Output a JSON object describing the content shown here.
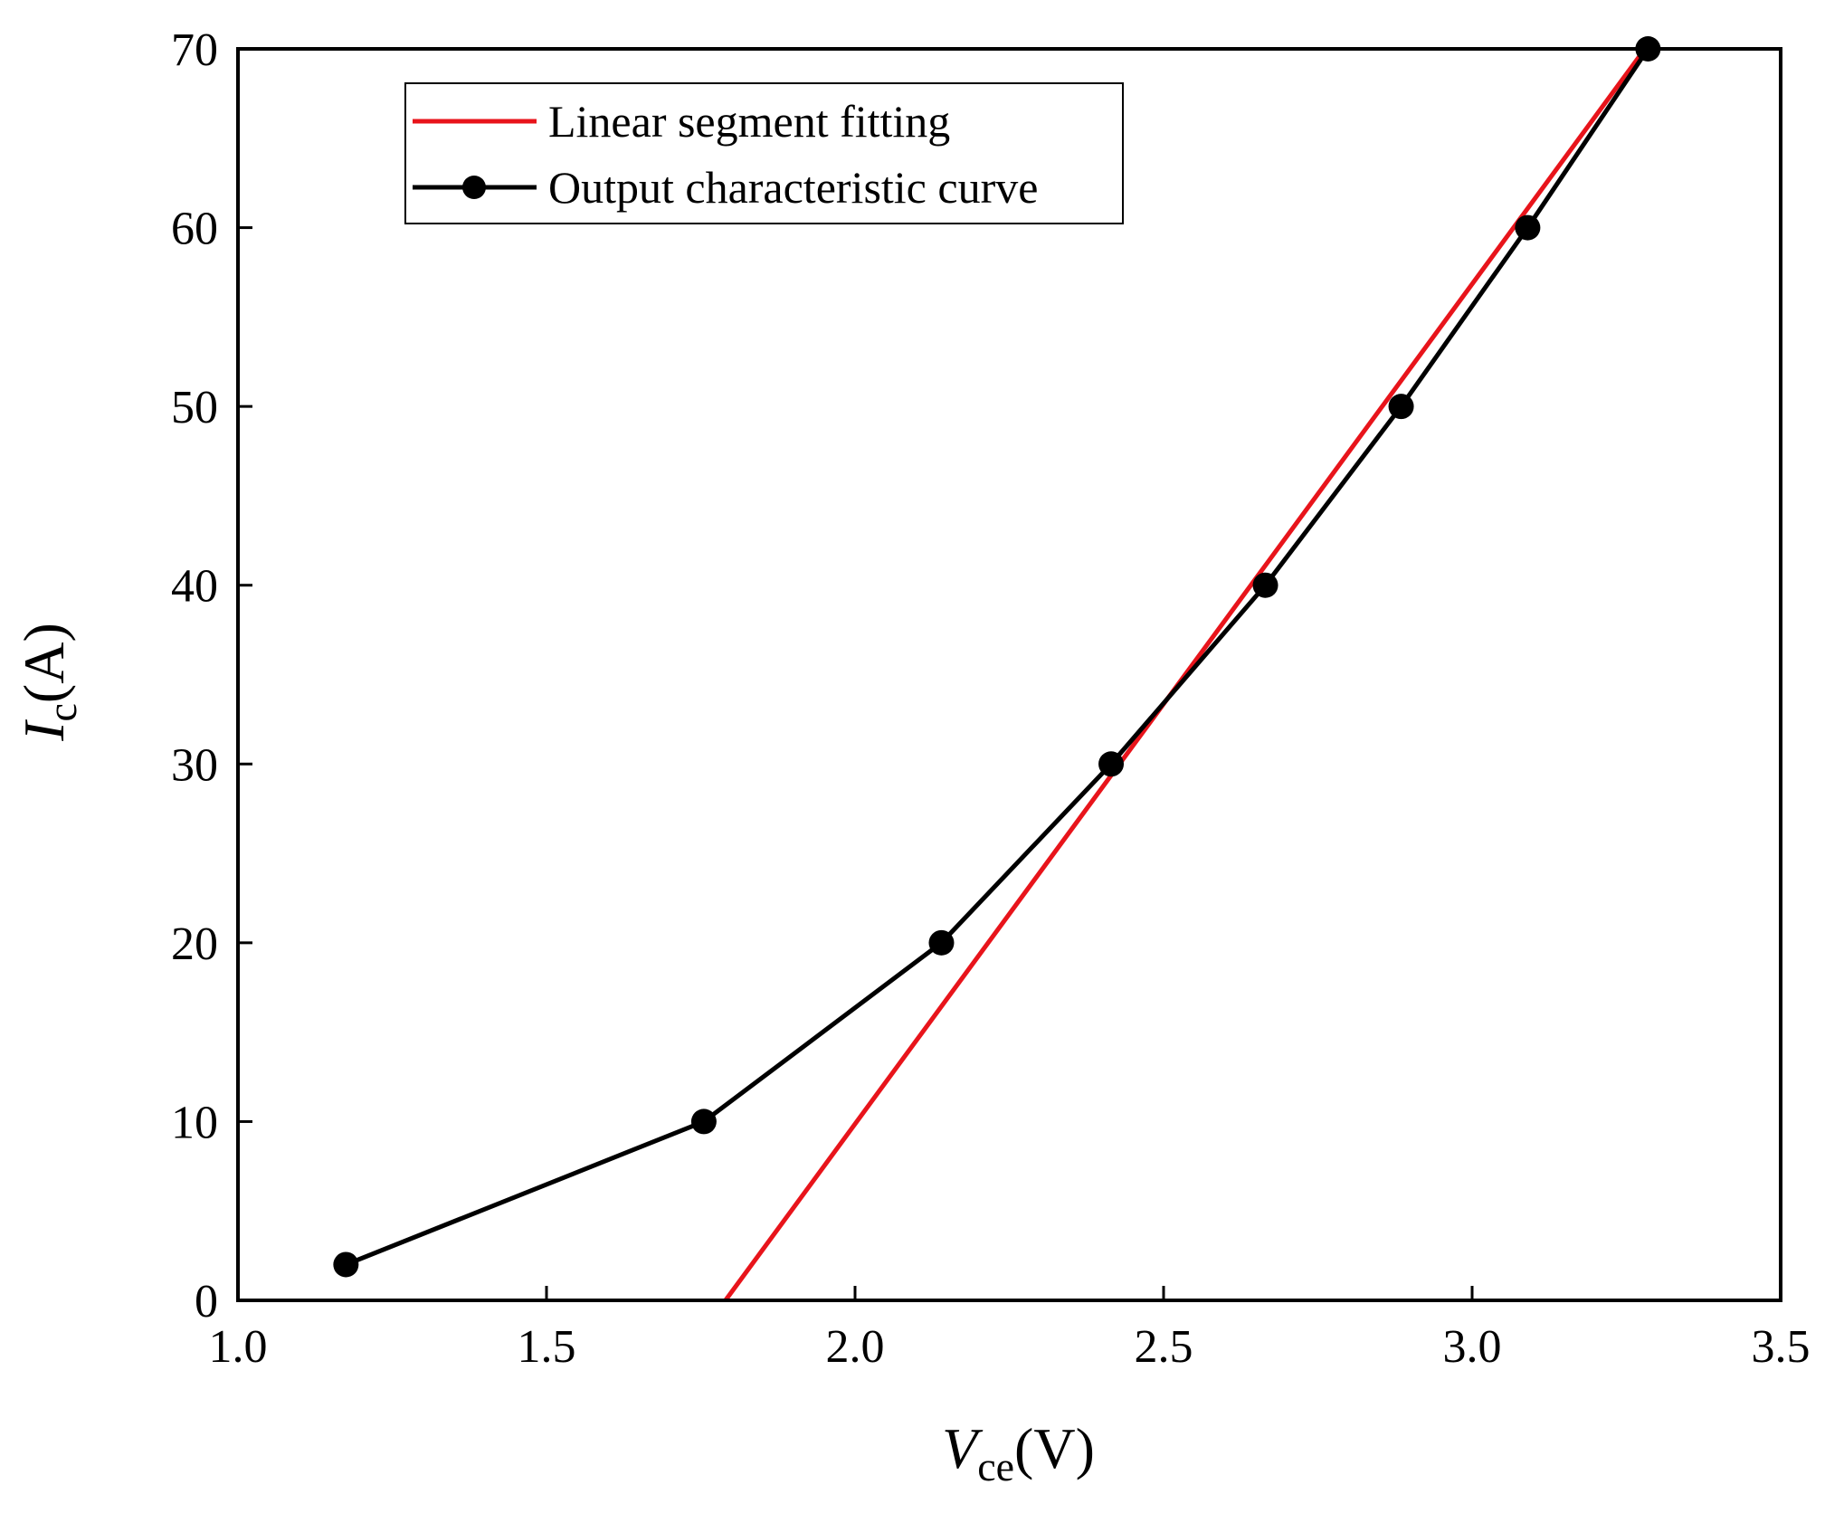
{
  "chart_data": {
    "type": "line",
    "xlabel": {
      "symbol": "V",
      "sub": "ce",
      "unit": "(V)"
    },
    "ylabel": {
      "symbol": "I",
      "sub": "c",
      "unit": "(A)"
    },
    "xlim": [
      1.0,
      3.5
    ],
    "ylim": [
      0,
      70
    ],
    "xticks": [
      1.0,
      1.5,
      2.0,
      2.5,
      3.0,
      3.5
    ],
    "xtick_labels": [
      "1.0",
      "1.5",
      "2.0",
      "2.5",
      "3.0",
      "3.5"
    ],
    "yticks": [
      0,
      10,
      20,
      30,
      40,
      50,
      60,
      70
    ],
    "ytick_labels": [
      "0",
      "10",
      "20",
      "30",
      "40",
      "50",
      "60",
      "70"
    ],
    "grid": false,
    "legend_position": "top-left",
    "series": [
      {
        "name": "Linear segment fitting",
        "color": "#e8141b",
        "markers": false,
        "x": [
          1.79,
          3.28
        ],
        "y": [
          0,
          70
        ]
      },
      {
        "name": "Output characteristic curve",
        "color": "#000000",
        "markers": true,
        "x": [
          1.175,
          1.755,
          2.14,
          2.415,
          2.665,
          2.885,
          3.09,
          3.285
        ],
        "y": [
          2,
          10,
          20,
          30,
          40,
          50,
          60,
          70
        ]
      }
    ]
  }
}
